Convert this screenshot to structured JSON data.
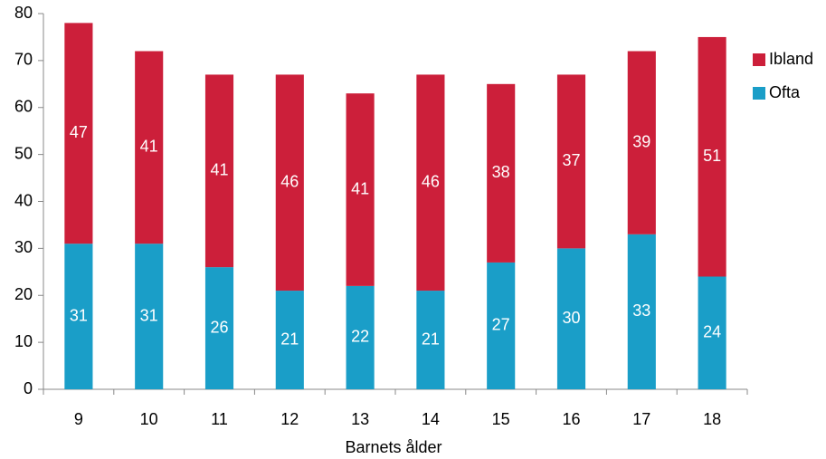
{
  "chart_data": {
    "type": "stacked_bar",
    "x_label": "Barnets ålder",
    "categories": [
      "9",
      "10",
      "11",
      "12",
      "13",
      "14",
      "15",
      "16",
      "17",
      "18"
    ],
    "series": [
      {
        "name": "Ofta",
        "color": "#1a9ec8",
        "values": [
          31,
          31,
          26,
          21,
          22,
          21,
          27,
          30,
          33,
          24
        ]
      },
      {
        "name": "Ibland",
        "color": "#cc1f3a",
        "values": [
          47,
          41,
          41,
          46,
          41,
          46,
          38,
          37,
          39,
          51
        ]
      }
    ],
    "ylim": [
      0,
      80
    ],
    "yticks": [
      0,
      10,
      20,
      30,
      40,
      50,
      60,
      70,
      80
    ],
    "legend": "right"
  }
}
